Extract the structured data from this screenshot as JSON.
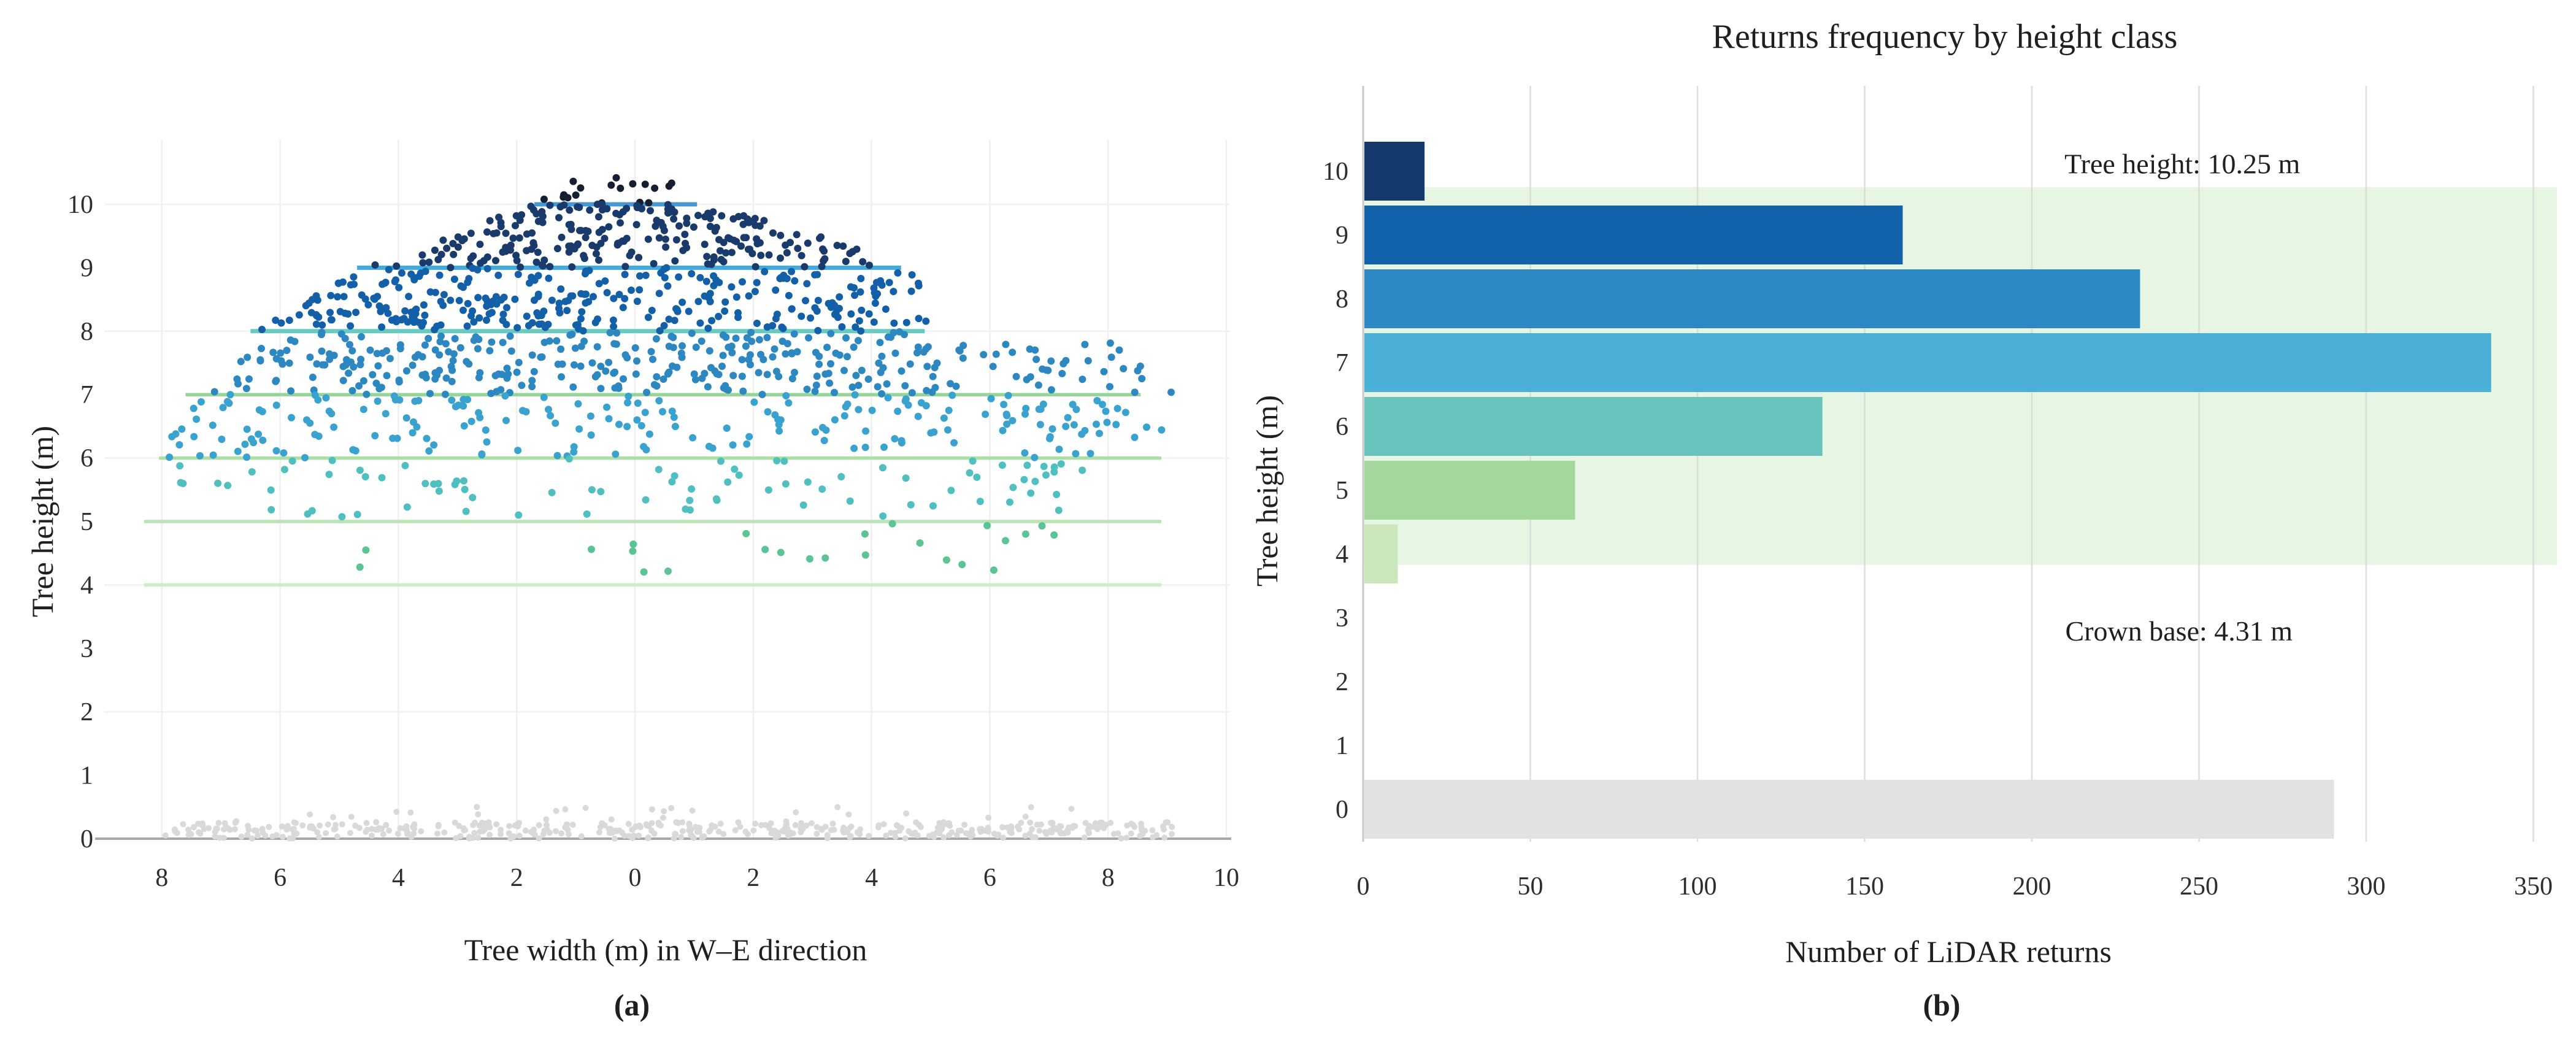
{
  "figure": {
    "panel_a_label": "(a)",
    "panel_b_label": "(b)",
    "background": "#ffffff"
  },
  "chart_data": [
    {
      "id": "panel_a",
      "type": "scatter",
      "title": "",
      "xlabel": "Tree width (m) in W–E direction",
      "ylabel": "Tree height (m)",
      "xlim": [
        -9.2,
        10.4
      ],
      "ylim": [
        -0.3,
        11.2
      ],
      "grid": true,
      "x_ticks": [
        -8,
        -6,
        -4,
        -2,
        0,
        2,
        4,
        6,
        8,
        10
      ],
      "x_tick_labels": [
        "8",
        "6",
        "4",
        "2",
        "0",
        "2",
        "4",
        "6",
        "8",
        "10"
      ],
      "y_ticks": [
        0,
        1,
        2,
        3,
        4,
        5,
        6,
        7,
        8,
        9,
        10
      ],
      "grid_x_values": [
        -8,
        -6,
        -4,
        -2,
        0,
        2,
        4,
        6,
        8,
        10
      ],
      "grid_y_values": [
        2,
        4,
        6,
        8,
        10
      ],
      "height_class_colors": {
        "10": "#151f31",
        "9": "#1a3a6b",
        "8": "#1360a9",
        "7": "#2d87c1",
        "6": "#39a2cf",
        "5": "#4fbfc0",
        "4": "#5cc394",
        "ground": "#d9d9d9"
      },
      "crown_width_lines": [
        {
          "height_m": 10,
          "x_from": -1.7,
          "x_to": 1.05,
          "color": "#3b92cf"
        },
        {
          "height_m": 9,
          "x_from": -4.7,
          "x_to": 4.5,
          "color": "#38a5dc"
        },
        {
          "height_m": 8,
          "x_from": -6.5,
          "x_to": 4.9,
          "color": "#62c7bf"
        },
        {
          "height_m": 7,
          "x_from": -7.6,
          "x_to": 8.55,
          "color": "#8ed491"
        },
        {
          "height_m": 6,
          "x_from": -8.05,
          "x_to": 8.9,
          "color": "#a6dda1"
        },
        {
          "height_m": 5,
          "x_from": -8.3,
          "x_to": 8.9,
          "color": "#b6e3ad"
        },
        {
          "height_m": 4,
          "x_from": -8.3,
          "x_to": 8.9,
          "color": "#c9ecc3"
        }
      ],
      "point_cloud_seed": 20240311,
      "point_groups": [
        {
          "class": "10",
          "count": 18,
          "y_range": [
            10.02,
            10.44
          ],
          "x_left": [
            -1.75,
            -0.9
          ],
          "x_right": [
            1.25,
            0.55
          ]
        },
        {
          "class": "9",
          "count": 170,
          "y_range": [
            9.0,
            10.0
          ],
          "x_left": [
            -4.55,
            -1.8
          ],
          "x_right": [
            4.75,
            1.35
          ]
        },
        {
          "class": "9",
          "count": 60,
          "y_range": [
            9.0,
            9.55
          ],
          "x_left": [
            -3.6,
            -2.6
          ],
          "x_right": [
            4.3,
            3.3
          ]
        },
        {
          "class": "8",
          "count": 250,
          "y_range": [
            8.0,
            9.0
          ],
          "x_left": [
            -6.45,
            -4.6
          ],
          "x_right": [
            5.1,
            4.8
          ]
        },
        {
          "class": "8",
          "count": 55,
          "y_range": [
            8.05,
            8.6
          ],
          "x_left": [
            -6.3,
            -5.3
          ],
          "x_right": [
            -1.8,
            -0.2
          ]
        },
        {
          "class": "7",
          "count": 300,
          "y_range": [
            7.0,
            8.0
          ],
          "x_left": [
            -7.45,
            -6.45
          ],
          "x_right": [
            5.3,
            5.15
          ]
        },
        {
          "class": "7",
          "count": 40,
          "y_range": [
            7.0,
            7.85
          ],
          "x_left": [
            5.3,
            5.3
          ],
          "x_right": [
            9.15,
            8.2
          ]
        },
        {
          "class": "6",
          "count": 175,
          "y_range": [
            6.0,
            7.0
          ],
          "x_left": [
            -8.3,
            -7.45
          ],
          "x_right": [
            8.0,
            7.5
          ]
        },
        {
          "class": "6",
          "count": 28,
          "y_range": [
            6.3,
            6.95
          ],
          "x_left": [
            6.4,
            6.0
          ],
          "x_right": [
            9.2,
            8.6
          ]
        },
        {
          "class": "5",
          "count": 85,
          "y_range": [
            5.05,
            6.0
          ],
          "x_left": [
            -7.6,
            -8.3
          ],
          "x_right": [
            7.9,
            8.8
          ]
        },
        {
          "class": "4",
          "count": 22,
          "y_range": [
            4.15,
            5.0
          ],
          "x_left": [
            -1.2,
            -0.5
          ],
          "x_right": [
            7.5,
            7.2
          ]
        },
        {
          "class": "ground",
          "count": 430,
          "y_range": [
            0.0,
            0.26
          ],
          "x_left": [
            -8.0,
            -8.0
          ],
          "x_right": [
            9.1,
            9.1
          ]
        },
        {
          "class": "ground",
          "count": 28,
          "y_range": [
            0.26,
            0.5
          ],
          "x_left": [
            -7.4,
            -7.4
          ],
          "x_right": [
            8.4,
            8.4
          ]
        }
      ],
      "extra_points": [
        {
          "class": "4",
          "x": -4.55,
          "y": 4.55
        },
        {
          "class": "4",
          "x": -4.65,
          "y": 4.28
        }
      ]
    },
    {
      "id": "panel_b",
      "type": "bar",
      "orientation": "horizontal",
      "title": "Returns frequency by height class",
      "xlabel": "Number of LiDAR returns",
      "ylabel": "Tree height (m)",
      "categories": [
        "10",
        "9",
        "8",
        "7",
        "6",
        "5",
        "4",
        "3",
        "2",
        "1",
        "0"
      ],
      "values": [
        18,
        161,
        232,
        337,
        137,
        63,
        10,
        0,
        0,
        0,
        290
      ],
      "bar_colors": [
        "#153a6d",
        "#1263ac",
        "#2d88c3",
        "#4bb0d7",
        "#68c3bc",
        "#a3d79b",
        "#c9e7ba",
        "#ffffff",
        "#ffffff",
        "#ffffff",
        "#e2e2e2"
      ],
      "xlim": [
        0,
        362
      ],
      "x_ticks": [
        0,
        50,
        100,
        150,
        200,
        250,
        300,
        350
      ],
      "grid": true,
      "tree_height_m": 10.25,
      "crown_base_m": 4.31,
      "crown_band": {
        "from_m": 3.83,
        "to_m": 9.75,
        "color": "#e7f5e3"
      },
      "annotations": [
        {
          "text": "Tree height: 10.25 m",
          "x": 245,
          "y": 10.1
        },
        {
          "text": "Crown base: 4.31 m",
          "x": 244,
          "y": 2.78
        }
      ]
    }
  ]
}
